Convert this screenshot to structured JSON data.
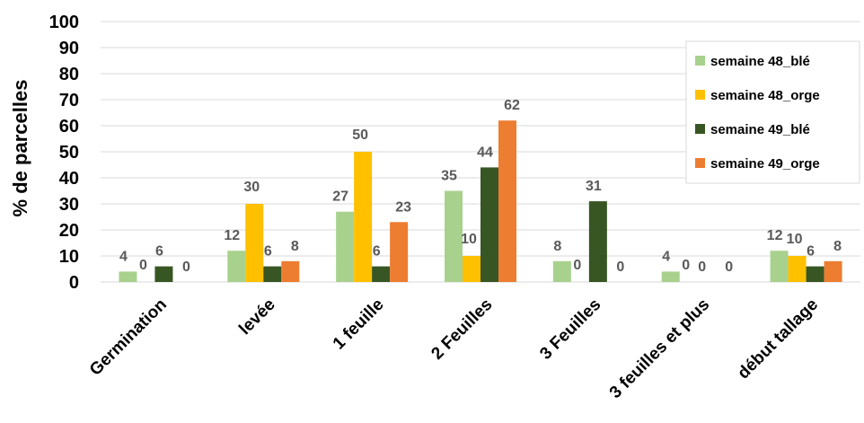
{
  "chart_data": {
    "type": "bar",
    "ylabel": "% de parcelles",
    "ylim": [
      0,
      100
    ],
    "yticks": [
      0,
      10,
      20,
      30,
      40,
      50,
      60,
      70,
      80,
      90,
      100
    ],
    "grid": true,
    "legend_position": "top-right",
    "categories": [
      "Germination",
      "levée",
      "1 feuille",
      "2 Feuilles",
      "3 Feuilles",
      "3 feuilles et plus",
      "début tallage"
    ],
    "series": [
      {
        "name": "semaine 48_blé",
        "color": "#a9d18e",
        "values": [
          4,
          12,
          27,
          35,
          8,
          4,
          12
        ],
        "labels": [
          "4",
          "12",
          "27",
          "35",
          "8",
          "4",
          "12"
        ]
      },
      {
        "name": "semaine 48_orge",
        "color": "#ffc000",
        "values": [
          0,
          30,
          50,
          10,
          0,
          0,
          10
        ],
        "labels": [
          "0",
          "30",
          "50",
          "10",
          "0",
          "0",
          "10"
        ]
      },
      {
        "name": "semaine 49_blé",
        "color": "#375623",
        "values": [
          6,
          6,
          6,
          44,
          31,
          0,
          6
        ],
        "labels": [
          "6",
          "6",
          "6",
          "44",
          "31",
          "0",
          "6"
        ]
      },
      {
        "name": "semaine 49_orge",
        "color": "#ed7d31",
        "values": [
          0,
          8,
          23,
          62,
          0,
          0,
          8
        ],
        "labels": [
          "0",
          "8",
          "23",
          "62",
          "0",
          "0",
          "8"
        ]
      }
    ]
  }
}
